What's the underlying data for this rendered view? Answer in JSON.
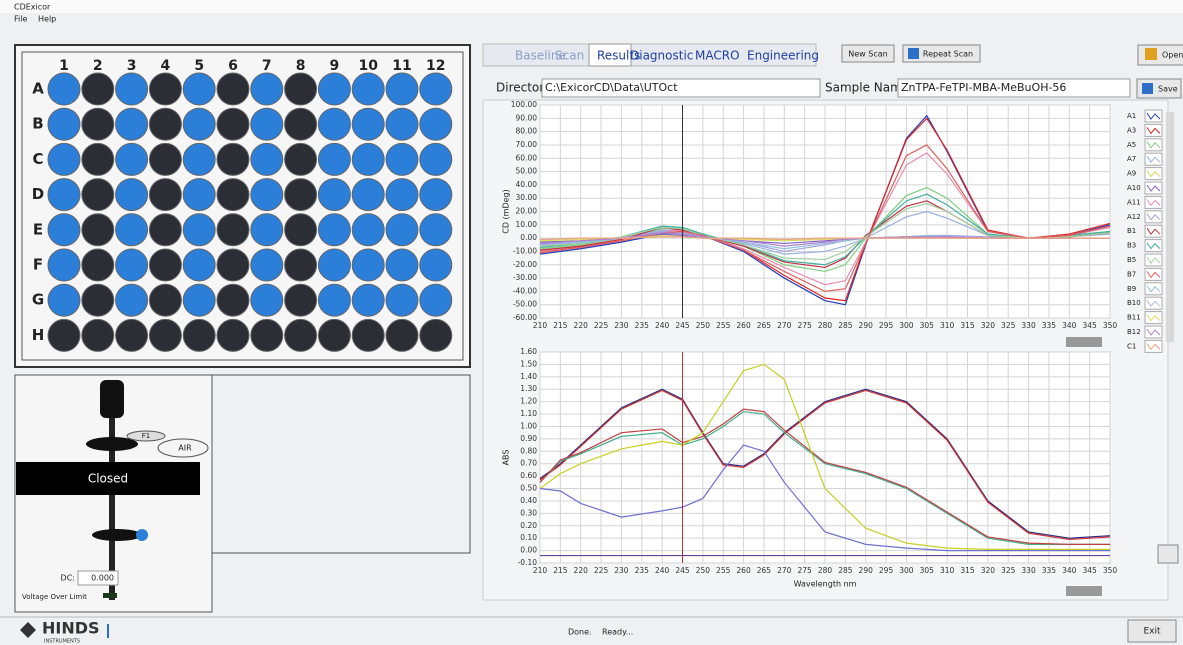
{
  "window": {
    "title": "CDExicor",
    "menu": [
      "File",
      "Help"
    ]
  },
  "tabs": {
    "items": [
      "Baseline",
      "Scan",
      "Results",
      "Diagnostic",
      "MACRO",
      "Engineering"
    ],
    "selected": "Results",
    "disabled": [
      "Baseline",
      "Scan"
    ]
  },
  "buttons": {
    "new_scan": "New Scan",
    "repeat_scan": "Repeat Scan",
    "open": "Open",
    "save": "Save",
    "exit": "Exit"
  },
  "directory": {
    "label": "Directory:",
    "value": "C:\\ExicorCD\\Data\\UTOct"
  },
  "sample": {
    "label": "Sample Name:",
    "value": "ZnTPA-FeTPI-MBA-MeBuOH-56"
  },
  "plate": {
    "columns": [
      "1",
      "2",
      "3",
      "4",
      "5",
      "6",
      "7",
      "8",
      "9",
      "10",
      "11",
      "12"
    ],
    "selected_color": "#2c7fd9",
    "empty_color": "#2b2e35",
    "rows": [
      {
        "label": "A",
        "wells": [
          true,
          false,
          true,
          false,
          true,
          false,
          true,
          false,
          true,
          true,
          true,
          true
        ]
      },
      {
        "label": "B",
        "wells": [
          true,
          false,
          true,
          false,
          true,
          false,
          true,
          false,
          true,
          true,
          true,
          true
        ]
      },
      {
        "label": "C",
        "wells": [
          true,
          false,
          true,
          false,
          true,
          false,
          true,
          false,
          true,
          true,
          true,
          true
        ]
      },
      {
        "label": "D",
        "wells": [
          true,
          false,
          true,
          false,
          true,
          false,
          true,
          false,
          true,
          true,
          true,
          true
        ]
      },
      {
        "label": "E",
        "wells": [
          true,
          false,
          true,
          false,
          true,
          false,
          true,
          false,
          true,
          true,
          true,
          true
        ]
      },
      {
        "label": "F",
        "wells": [
          true,
          false,
          true,
          false,
          true,
          false,
          true,
          false,
          true,
          true,
          true,
          true
        ]
      },
      {
        "label": "G",
        "wells": [
          true,
          false,
          true,
          false,
          true,
          false,
          true,
          false,
          true,
          true,
          true,
          true
        ]
      },
      {
        "label": "H",
        "wells": [
          false,
          false,
          false,
          false,
          false,
          false,
          false,
          false,
          false,
          false,
          false,
          false
        ]
      }
    ]
  },
  "shutter": {
    "f1": "F1",
    "air": "AIR",
    "state": "Closed",
    "dc_label": "DC:",
    "dc_value": "0.000",
    "voltage": "Voltage Over Limit"
  },
  "status": {
    "logo": "HINDS",
    "logo_sub": "INSTRUMENTS",
    "done": "Done.",
    "ready": "Ready..."
  },
  "chart_data": [
    {
      "type": "line",
      "y_label": "CD (mDeg)",
      "grid": true,
      "cursor": 245,
      "cursor_color": "#333333",
      "x": [
        210,
        220,
        230,
        240,
        245,
        250,
        260,
        270,
        280,
        285,
        290,
        300,
        305,
        310,
        320,
        330,
        340,
        350
      ],
      "xlim": [
        210,
        350
      ],
      "xticks": [
        210,
        215,
        220,
        225,
        230,
        235,
        240,
        245,
        250,
        255,
        260,
        265,
        270,
        275,
        280,
        285,
        290,
        295,
        300,
        305,
        310,
        315,
        320,
        325,
        330,
        335,
        340,
        345,
        350
      ],
      "ylim": [
        -60,
        100
      ],
      "yticks": [
        {
          "value": -60,
          "label": "-60.00"
        },
        {
          "value": -50,
          "label": "-50.00"
        },
        {
          "value": -40,
          "label": "-40.00"
        },
        {
          "value": -30,
          "label": "-30.00"
        },
        {
          "value": -20,
          "label": "-20.00"
        },
        {
          "value": -10,
          "label": "-10.00"
        },
        {
          "value": 0,
          "label": "0.00"
        },
        {
          "value": 10,
          "label": "10.00"
        },
        {
          "value": 20,
          "label": "20.00"
        },
        {
          "value": 30,
          "label": "30.00"
        },
        {
          "value": 40,
          "label": "40.00"
        },
        {
          "value": 50,
          "label": "50.00"
        },
        {
          "value": 60,
          "label": "60.00"
        },
        {
          "value": 70,
          "label": "70.00"
        },
        {
          "value": 80,
          "label": "80.00"
        },
        {
          "value": 90,
          "label": "90.00"
        },
        {
          "value": 100,
          "label": "100.00"
        }
      ],
      "series": [
        {
          "name": "A1",
          "color": "#2040c0",
          "values": [
            -12,
            -8,
            -3,
            3,
            5,
            2,
            -10,
            -30,
            -47,
            -50,
            -5,
            75,
            92,
            65,
            5,
            0,
            2,
            10
          ]
        },
        {
          "name": "A3",
          "color": "#e02020",
          "values": [
            -10,
            -7,
            -2,
            4,
            5,
            3,
            -9,
            -28,
            -45,
            -47,
            -4,
            74,
            90,
            66,
            6,
            0,
            3,
            11
          ]
        },
        {
          "name": "A5",
          "color": "#7fcf7f",
          "values": [
            -8,
            -5,
            0,
            7,
            8,
            3,
            -6,
            -20,
            -25,
            -20,
            0,
            32,
            38,
            30,
            3,
            0,
            2,
            5
          ]
        },
        {
          "name": "A7",
          "color": "#9ab0e0",
          "values": [
            -6,
            -4,
            0,
            6,
            6,
            2,
            -4,
            -12,
            -10,
            -6,
            0,
            16,
            20,
            15,
            2,
            0,
            1,
            3
          ]
        },
        {
          "name": "A9",
          "color": "#d8d860",
          "values": [
            -2,
            -1,
            0,
            2,
            1,
            0,
            -1,
            -2,
            -1,
            0,
            0,
            1,
            1,
            1,
            0,
            0,
            0,
            0
          ]
        },
        {
          "name": "A10",
          "color": "#8060c0",
          "values": [
            -3,
            -2,
            0,
            3,
            2,
            0,
            -2,
            -4,
            -2,
            -1,
            0,
            1,
            1,
            1,
            0,
            0,
            0,
            0
          ]
        },
        {
          "name": "A11",
          "color": "#e890b0",
          "values": [
            -10,
            -6,
            -2,
            5,
            6,
            3,
            -8,
            -22,
            -35,
            -32,
            -3,
            55,
            64,
            48,
            5,
            0,
            2,
            8
          ]
        },
        {
          "name": "A12",
          "color": "#a0a0e0",
          "values": [
            -5,
            -3,
            0,
            5,
            4,
            1,
            -3,
            -10,
            -5,
            -2,
            0,
            1,
            2,
            2,
            1,
            0,
            0,
            0
          ]
        },
        {
          "name": "B1",
          "color": "#c03040",
          "values": [
            -9,
            -6,
            -1,
            8,
            6,
            2,
            -6,
            -18,
            -22,
            -15,
            2,
            24,
            28,
            20,
            2,
            0,
            1,
            4
          ]
        },
        {
          "name": "B3",
          "color": "#40b0a0",
          "values": [
            -7,
            -4,
            1,
            9,
            8,
            3,
            -5,
            -17,
            -20,
            -14,
            1,
            28,
            33,
            25,
            3,
            0,
            2,
            5
          ]
        },
        {
          "name": "B5",
          "color": "#a0d0a0",
          "values": [
            -6,
            -4,
            1,
            8,
            7,
            2,
            -5,
            -15,
            -16,
            -10,
            1,
            22,
            26,
            20,
            2,
            0,
            1,
            4
          ]
        },
        {
          "name": "B7",
          "color": "#e06060",
          "values": [
            -11,
            -7,
            -2,
            4,
            5,
            2,
            -9,
            -25,
            -40,
            -38,
            -4,
            62,
            70,
            52,
            5,
            0,
            2,
            9
          ]
        },
        {
          "name": "B9",
          "color": "#90c0e0",
          "values": [
            -4,
            -3,
            0,
            4,
            3,
            1,
            -3,
            -8,
            -4,
            -2,
            0,
            1,
            2,
            1,
            0,
            0,
            0,
            0
          ]
        },
        {
          "name": "B10",
          "color": "#b0b8e8",
          "values": [
            -1,
            -1,
            0,
            1,
            1,
            0,
            -1,
            -1,
            0,
            0,
            0,
            0,
            0,
            0,
            0,
            0,
            0,
            0
          ]
        },
        {
          "name": "B11",
          "color": "#e0e060",
          "values": [
            -2,
            -1,
            0,
            1,
            1,
            0,
            -1,
            -1,
            0,
            0,
            0,
            1,
            1,
            0,
            0,
            0,
            0,
            0
          ]
        },
        {
          "name": "B12",
          "color": "#b080d0",
          "values": [
            -4,
            -2,
            0,
            4,
            3,
            1,
            -2,
            -6,
            -3,
            -1,
            0,
            1,
            1,
            1,
            0,
            0,
            0,
            0
          ]
        },
        {
          "name": "C1",
          "color": "#f0a080",
          "values": [
            -1,
            0,
            0,
            1,
            1,
            0,
            0,
            -1,
            0,
            0,
            0,
            0,
            0,
            0,
            0,
            0,
            0,
            0
          ]
        }
      ]
    },
    {
      "type": "line",
      "y_label": "ABS",
      "x_label": "Wavelength nm",
      "grid": true,
      "cursor": 245,
      "cursor_color": "#c03030",
      "x": [
        210,
        215,
        220,
        230,
        240,
        245,
        250,
        255,
        260,
        265,
        270,
        280,
        290,
        300,
        310,
        320,
        330,
        340,
        350
      ],
      "xlim": [
        210,
        350
      ],
      "xticks": [
        210,
        215,
        220,
        225,
        230,
        235,
        240,
        245,
        250,
        255,
        260,
        265,
        270,
        275,
        280,
        285,
        290,
        295,
        300,
        305,
        310,
        315,
        320,
        325,
        330,
        335,
        340,
        345,
        350
      ],
      "ylim": [
        -0.1,
        1.6
      ],
      "yticks": [
        {
          "value": -0.1,
          "label": "-0.10"
        },
        {
          "value": 0,
          "label": "0.00"
        },
        {
          "value": 0.1,
          "label": "0.10"
        },
        {
          "value": 0.2,
          "label": "0.20"
        },
        {
          "value": 0.3,
          "label": "0.30"
        },
        {
          "value": 0.4,
          "label": "0.40"
        },
        {
          "value": 0.5,
          "label": "0.50"
        },
        {
          "value": 0.6,
          "label": "0.60"
        },
        {
          "value": 0.7,
          "label": "0.70"
        },
        {
          "value": 0.8,
          "label": "0.80"
        },
        {
          "value": 0.9,
          "label": "0.90"
        },
        {
          "value": 1,
          "label": "1.00"
        },
        {
          "value": 1.1,
          "label": "1.10"
        },
        {
          "value": 1.2,
          "label": "1.20"
        },
        {
          "value": 1.3,
          "label": "1.30"
        },
        {
          "value": 1.4,
          "label": "1.40"
        },
        {
          "value": 1.5,
          "label": "1.50"
        },
        {
          "value": 1.6,
          "label": "1.60"
        }
      ],
      "series": [
        {
          "color": "#2a2a80",
          "values": [
            0.58,
            0.7,
            0.85,
            1.15,
            1.3,
            1.22,
            0.95,
            0.7,
            0.68,
            0.78,
            0.95,
            1.2,
            1.3,
            1.2,
            0.9,
            0.4,
            0.15,
            0.1,
            0.12
          ]
        },
        {
          "color": "#d03030",
          "values": [
            0.57,
            0.69,
            0.84,
            1.14,
            1.29,
            1.21,
            0.94,
            0.69,
            0.67,
            0.77,
            0.94,
            1.19,
            1.29,
            1.19,
            0.89,
            0.39,
            0.14,
            0.09,
            0.11
          ]
        },
        {
          "color": "#40b090",
          "values": [
            0.55,
            0.72,
            0.78,
            0.92,
            0.95,
            0.85,
            0.9,
            1.0,
            1.12,
            1.1,
            0.95,
            0.7,
            0.62,
            0.5,
            0.3,
            0.1,
            0.05,
            0.05,
            0.05
          ]
        },
        {
          "color": "#c04040",
          "values": [
            0.55,
            0.73,
            0.79,
            0.95,
            0.98,
            0.87,
            0.92,
            1.02,
            1.14,
            1.12,
            0.97,
            0.71,
            0.63,
            0.51,
            0.31,
            0.11,
            0.06,
            0.05,
            0.05
          ]
        },
        {
          "color": "#c8d020",
          "values": [
            0.5,
            0.62,
            0.7,
            0.82,
            0.88,
            0.85,
            0.95,
            1.2,
            1.45,
            1.5,
            1.38,
            0.5,
            0.18,
            0.06,
            0.02,
            0.01,
            0.01,
            0.01,
            0.01
          ]
        },
        {
          "color": "#7070d0",
          "values": [
            0.5,
            0.48,
            0.38,
            0.27,
            0.32,
            0.35,
            0.42,
            0.65,
            0.85,
            0.8,
            0.55,
            0.15,
            0.05,
            0.02,
            0.0,
            0.0,
            0.0,
            0.0,
            0.0
          ]
        },
        {
          "color": "#6040a0",
          "values": [
            -0.04,
            -0.04,
            -0.04,
            -0.04,
            -0.04,
            -0.04,
            -0.04,
            -0.04,
            -0.04,
            -0.04,
            -0.04,
            -0.04,
            -0.04,
            -0.04,
            -0.04,
            -0.04,
            -0.04,
            -0.04,
            -0.04
          ]
        }
      ]
    }
  ]
}
